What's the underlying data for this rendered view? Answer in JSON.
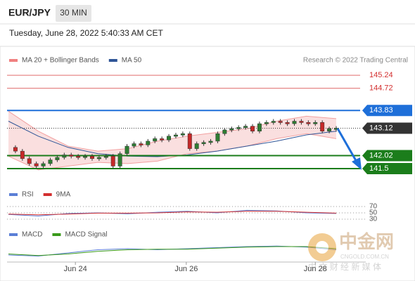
{
  "header": {
    "symbol": "EUR/JPY",
    "timeframe": "30 MIN",
    "datetime": "Tuesday, June 28, 2022 5:40:33 AM CET"
  },
  "chart_data": [
    {
      "type": "candlestick",
      "legend": [
        {
          "name": "MA 20 + Bollinger Bands",
          "color": "#f08080"
        },
        {
          "name": "MA 50",
          "color": "#2f5597"
        }
      ],
      "source": "Research © 2022 Trading Central",
      "ylim": [
        141.36,
        145.44
      ],
      "xlim": [
        0,
        47
      ],
      "xticks": [
        {
          "value": 9.6,
          "label": "Jun 24"
        },
        {
          "value": 25.5,
          "label": "Jun 26"
        },
        {
          "value": 44,
          "label": "Jun 28"
        }
      ],
      "up_color": "#2e7d32",
      "down_color": "#c62828",
      "closes": [
        142.35,
        142.2,
        141.9,
        141.7,
        141.6,
        141.7,
        141.85,
        141.95,
        142.05,
        142.0,
        141.95,
        142.0,
        141.9,
        141.95,
        142.0,
        141.6,
        142.1,
        142.4,
        142.5,
        142.45,
        142.6,
        142.7,
        142.65,
        142.8,
        142.85,
        142.9,
        142.3,
        142.5,
        142.55,
        142.6,
        142.9,
        143.05,
        143.1,
        143.15,
        143.2,
        143.0,
        143.3,
        143.35,
        143.4,
        143.35,
        143.3,
        143.4,
        143.35,
        143.3,
        143.35,
        143.0,
        143.1,
        143.12
      ],
      "ma50": [
        143.4,
        142.8,
        142.35,
        142.1,
        142.0,
        141.98,
        142.05,
        142.2,
        142.4,
        142.6,
        142.85,
        143.0
      ],
      "bb_upper": [
        143.8,
        143.0,
        142.4,
        142.2,
        142.3,
        142.6,
        142.8,
        142.95,
        143.1,
        143.4,
        143.6,
        143.5
      ],
      "bb_lower": [
        142.0,
        141.45,
        141.6,
        141.75,
        141.7,
        141.8,
        142.1,
        142.2,
        142.4,
        142.7,
        142.9,
        142.7
      ],
      "levels": [
        {
          "value": 145.24,
          "color": "#d32f2f",
          "style": "text"
        },
        {
          "value": 144.72,
          "color": "#d32f2f",
          "style": "text"
        },
        {
          "value": 143.83,
          "color": "#1e6fd9",
          "style": "box"
        },
        {
          "value": 143.12,
          "color": "#333333",
          "style": "box"
        },
        {
          "value": 142.02,
          "color": "#1b7d1b",
          "style": "box"
        },
        {
          "value": 141.5,
          "color": "#1b7d1b",
          "style": "box"
        }
      ]
    },
    {
      "type": "line",
      "ylim": [
        20,
        80
      ],
      "yticks": [
        70,
        50,
        30
      ],
      "series": [
        {
          "name": "RSI",
          "color": "#5b7fd6",
          "values": [
            45,
            40,
            48,
            50,
            47,
            52,
            55,
            50,
            58,
            56,
            50,
            48
          ]
        },
        {
          "name": "9MA",
          "color": "#d32f2f",
          "values": [
            46,
            44,
            46,
            49,
            49,
            50,
            53,
            52,
            55,
            55,
            52,
            49
          ]
        }
      ]
    },
    {
      "type": "line",
      "ylim": [
        -1,
        1
      ],
      "series": [
        {
          "name": "MACD",
          "color": "#5b7fd6",
          "values": [
            -0.4,
            -0.5,
            -0.2,
            0.1,
            0.2,
            0.1,
            0.2,
            0.3,
            0.4,
            0.45,
            0.35,
            0.1
          ]
        },
        {
          "name": "MACD Signal",
          "color": "#3a9a1a",
          "values": [
            -0.3,
            -0.45,
            -0.3,
            -0.05,
            0.1,
            0.15,
            0.15,
            0.25,
            0.35,
            0.4,
            0.4,
            0.2
          ]
        }
      ]
    }
  ],
  "watermark": {
    "brand": "中金网",
    "site": "CNGOLD.COM.CN",
    "slogan": "中 文 财 经 新 媒 体"
  }
}
